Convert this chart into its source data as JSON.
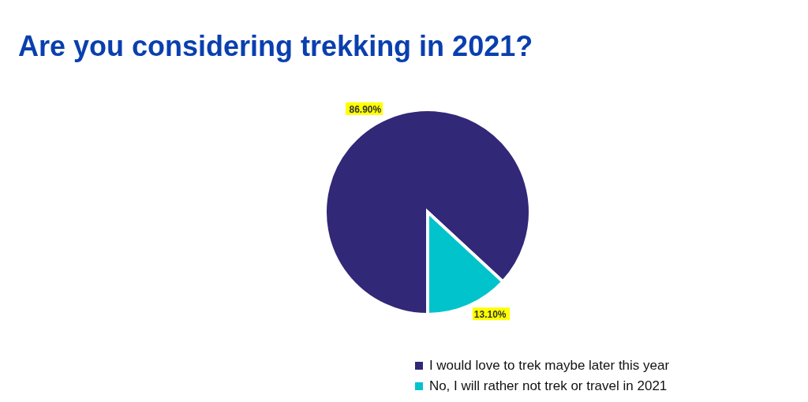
{
  "chart_data": {
    "type": "pie",
    "title": "Are you considering trekking in 2021?",
    "categories": [
      "I would love to trek maybe later this year",
      "No, I will rather not trek or travel in 2021"
    ],
    "values": [
      86.9,
      13.1
    ],
    "colors": [
      "#312878",
      "#00c3cc"
    ],
    "value_labels": [
      "86.90%",
      "13.10%"
    ],
    "legend": "bottom"
  }
}
